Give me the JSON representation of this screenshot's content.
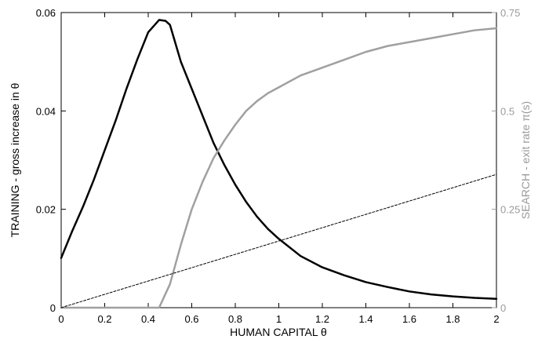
{
  "chart_data": {
    "type": "line",
    "xlabel": "HUMAN CAPITAL θ",
    "ylabel_left": "TRAINING - gross increase in θ",
    "ylabel_right": "SEARCH - exit rate π(s)",
    "xlim": [
      0,
      2
    ],
    "ylim_left": [
      0,
      0.06
    ],
    "ylim_right": [
      0,
      0.75
    ],
    "x_ticks": [
      "0",
      "0.2",
      "0.4",
      "0.6",
      "0.8",
      "1",
      "1.2",
      "1.4",
      "1.6",
      "1.8",
      "2"
    ],
    "y_left_ticks": [
      "0",
      "0.02",
      "0.04",
      "0.06"
    ],
    "y_right_ticks": [
      "0",
      "0.25",
      "0.5",
      "0.75"
    ],
    "grid": false,
    "legend": false,
    "colors": {
      "training": "#000000",
      "search": "#a0a0a0",
      "dashed": "#000000",
      "right_axis": "#9a9a9a"
    },
    "series": [
      {
        "axis": "left",
        "style": "solid",
        "color": "#000000",
        "x": [
          0,
          0.05,
          0.1,
          0.15,
          0.2,
          0.25,
          0.3,
          0.35,
          0.4,
          0.45,
          0.48,
          0.5,
          0.52,
          0.55,
          0.6,
          0.65,
          0.7,
          0.75,
          0.8,
          0.85,
          0.9,
          0.95,
          1.0,
          1.1,
          1.2,
          1.3,
          1.4,
          1.5,
          1.6,
          1.7,
          1.8,
          1.9,
          2.0
        ],
        "y": [
          0.0101,
          0.0155,
          0.0205,
          0.026,
          0.032,
          0.038,
          0.0445,
          0.0505,
          0.056,
          0.0585,
          0.0583,
          0.0575,
          0.0545,
          0.05,
          0.0445,
          0.039,
          0.0335,
          0.029,
          0.025,
          0.0215,
          0.0185,
          0.016,
          0.014,
          0.0105,
          0.0082,
          0.0066,
          0.0052,
          0.0042,
          0.0033,
          0.0027,
          0.0023,
          0.002,
          0.0018
        ]
      },
      {
        "axis": "right",
        "style": "solid",
        "color": "#a0a0a0",
        "x": [
          0,
          0.45,
          0.5,
          0.55,
          0.6,
          0.65,
          0.7,
          0.75,
          0.8,
          0.85,
          0.9,
          0.95,
          1.0,
          1.1,
          1.2,
          1.3,
          1.4,
          1.5,
          1.6,
          1.7,
          1.8,
          1.9,
          2.0
        ],
        "y": [
          0,
          0,
          0.06,
          0.16,
          0.25,
          0.32,
          0.38,
          0.425,
          0.465,
          0.5,
          0.525,
          0.545,
          0.56,
          0.59,
          0.61,
          0.63,
          0.65,
          0.665,
          0.675,
          0.685,
          0.695,
          0.705,
          0.71
        ]
      },
      {
        "axis": "left",
        "style": "dashed",
        "color": "#000000",
        "x": [
          0,
          2
        ],
        "y": [
          0,
          0.0271
        ]
      }
    ]
  }
}
